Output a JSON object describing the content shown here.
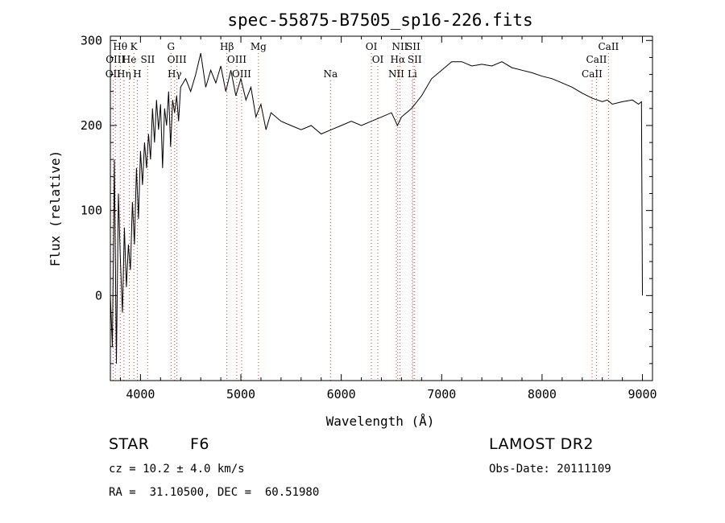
{
  "chart_data": {
    "type": "line",
    "title": "spec-55875-B7505_sp16-226.fits",
    "xlabel": "Wavelength (Å)",
    "ylabel": "Flux (relative)",
    "xlim": [
      3700,
      9100
    ],
    "ylim": [
      -100,
      305
    ],
    "xticks": [
      4000,
      5000,
      6000,
      7000,
      8000,
      9000
    ],
    "yticks": [
      0,
      100,
      200,
      300
    ],
    "grid": false,
    "legend": "none",
    "series": [
      {
        "x": [
          3700,
          3720,
          3740,
          3760,
          3780,
          3800,
          3820,
          3840,
          3860,
          3880,
          3900,
          3920,
          3940,
          3960,
          3980,
          4000,
          4020,
          4040,
          4060,
          4080,
          4100,
          4120,
          4140,
          4160,
          4180,
          4200,
          4220,
          4240,
          4260,
          4280,
          4300,
          4320,
          4340,
          4360,
          4380,
          4400,
          4450,
          4500,
          4550,
          4600,
          4650,
          4700,
          4750,
          4800,
          4850,
          4900,
          4950,
          5000,
          5050,
          5100,
          5150,
          5200,
          5250,
          5300,
          5400,
          5500,
          5600,
          5700,
          5800,
          5900,
          6000,
          6100,
          6200,
          6300,
          6400,
          6500,
          6560,
          6600,
          6700,
          6800,
          6900,
          7000,
          7100,
          7200,
          7300,
          7400,
          7500,
          7600,
          7700,
          7800,
          7900,
          8000,
          8100,
          8200,
          8300,
          8400,
          8500,
          8600,
          8650,
          8700,
          8800,
          8900,
          8960,
          8990,
          9000
        ],
        "y": [
          0,
          -60,
          160,
          -80,
          120,
          40,
          -20,
          80,
          10,
          60,
          30,
          110,
          60,
          150,
          90,
          170,
          130,
          180,
          150,
          190,
          160,
          220,
          180,
          230,
          195,
          225,
          150,
          220,
          200,
          240,
          175,
          230,
          215,
          235,
          205,
          245,
          255,
          240,
          260,
          285,
          245,
          265,
          250,
          270,
          240,
          265,
          235,
          255,
          230,
          245,
          210,
          225,
          195,
          215,
          205,
          200,
          195,
          200,
          190,
          195,
          200,
          205,
          200,
          205,
          210,
          215,
          200,
          210,
          220,
          235,
          255,
          265,
          275,
          275,
          270,
          272,
          270,
          275,
          268,
          265,
          262,
          258,
          255,
          250,
          245,
          238,
          232,
          228,
          230,
          225,
          228,
          230,
          225,
          228,
          0
        ]
      }
    ],
    "line_labels": [
      {
        "label": "Hθ",
        "x": 3798,
        "row": 0
      },
      {
        "label": "K",
        "x": 3934,
        "row": 0
      },
      {
        "label": "G",
        "x": 4304,
        "row": 0
      },
      {
        "label": "Hβ",
        "x": 4861,
        "row": 0
      },
      {
        "label": "Mg",
        "x": 5175,
        "row": 0
      },
      {
        "label": "OI",
        "x": 6300,
        "row": 0
      },
      {
        "label": "NII",
        "x": 6584,
        "row": 0
      },
      {
        "label": "SII",
        "x": 6716,
        "row": 0
      },
      {
        "label": "CaII",
        "x": 8662,
        "row": 0
      },
      {
        "label": "OIII",
        "x": 3750,
        "row": 1
      },
      {
        "label": "He",
        "x": 3889,
        "row": 1
      },
      {
        "label": "SII",
        "x": 4072,
        "row": 1
      },
      {
        "label": "OIII",
        "x": 4363,
        "row": 1
      },
      {
        "label": "OIII",
        "x": 4959,
        "row": 1
      },
      {
        "label": "OI",
        "x": 6364,
        "row": 1
      },
      {
        "label": "Hα",
        "x": 6563,
        "row": 1
      },
      {
        "label": "SII",
        "x": 6731,
        "row": 1
      },
      {
        "label": "CaII",
        "x": 8542,
        "row": 1
      },
      {
        "label": "OII",
        "x": 3727,
        "row": 2
      },
      {
        "label": "Hη",
        "x": 3835,
        "row": 2
      },
      {
        "label": "H",
        "x": 3969,
        "row": 2
      },
      {
        "label": "Hγ",
        "x": 4340,
        "row": 2
      },
      {
        "label": "OIII",
        "x": 5007,
        "row": 2
      },
      {
        "label": "Na",
        "x": 5893,
        "row": 2
      },
      {
        "label": "NII",
        "x": 6548,
        "row": 2
      },
      {
        "label": "Li",
        "x": 6708,
        "row": 2
      },
      {
        "label": "CaII",
        "x": 8498,
        "row": 2
      }
    ]
  },
  "info": {
    "type_label": "STAR",
    "subclass": "F6",
    "survey": "LAMOST DR2",
    "cz": "cz = 10.2 ± 4.0 km/s",
    "obs_date": "Obs-Date: 20111109",
    "coords": "RA =  31.10500, DEC =  60.51980"
  }
}
